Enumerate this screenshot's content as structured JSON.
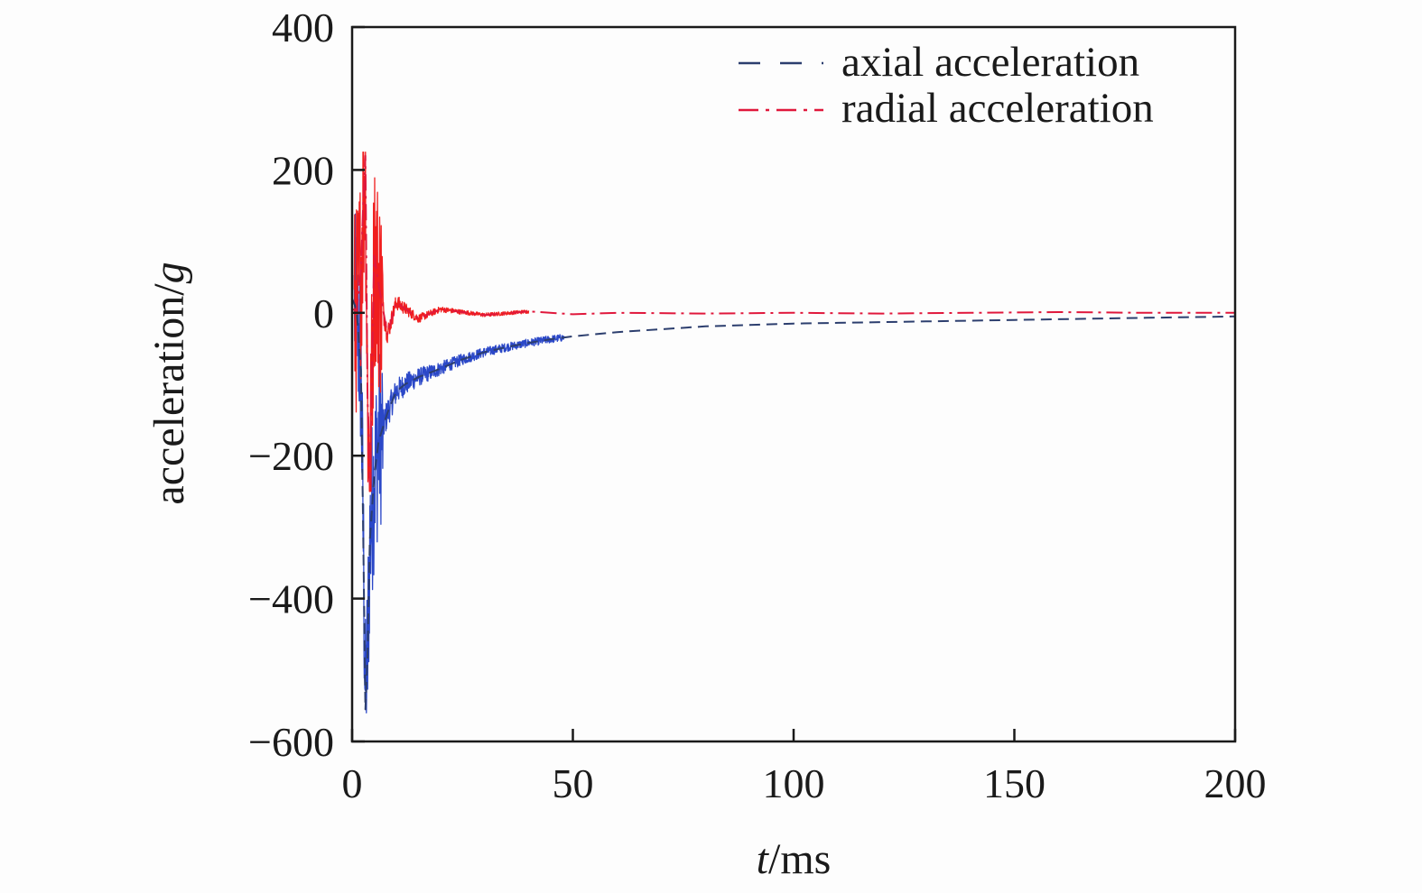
{
  "chart_data": {
    "type": "line",
    "title": "",
    "xlabel_var": "t",
    "xlabel_unit": "/ms",
    "ylabel_main": "acceleration/",
    "ylabel_var": "g",
    "xlim": [
      0,
      200
    ],
    "ylim": [
      -600,
      400
    ],
    "xticks": [
      0,
      50,
      100,
      150,
      200
    ],
    "xtick_labels": [
      "0",
      "50",
      "100",
      "150",
      "200"
    ],
    "yticks": [
      400,
      200,
      0,
      -200,
      -400,
      -600
    ],
    "ytick_labels": [
      "400",
      "200",
      "0",
      "−200",
      "−400",
      "−600"
    ],
    "grid": false,
    "legend_position": "top-right",
    "colors": {
      "axial_dash": "#2c3e6e",
      "axial_noise": "#2b48c8",
      "radial_line": "#e0183c",
      "radial_noise": "#f01e1e",
      "axis": "#1a1a1a"
    },
    "series": [
      {
        "name": "axial acceleration",
        "style": "dashed",
        "x": [
          0,
          1,
          2,
          2.5,
          3,
          3.5,
          4,
          5,
          6,
          8,
          10,
          12,
          15,
          20,
          25,
          30,
          35,
          40,
          45,
          50,
          60,
          70,
          80,
          90,
          100,
          110,
          120,
          130,
          140,
          150,
          160,
          170,
          180,
          190,
          200
        ],
        "y": [
          20,
          5,
          -80,
          -300,
          -555,
          -480,
          -320,
          -230,
          -180,
          -140,
          -110,
          -100,
          -90,
          -78,
          -65,
          -55,
          -48,
          -42,
          -37,
          -33,
          -27,
          -23,
          -19,
          -17,
          -15,
          -14,
          -13,
          -12,
          -11,
          -10,
          -9,
          -8,
          -7,
          -6,
          -5
        ]
      },
      {
        "name": "radial acceleration",
        "style": "dash-dot",
        "x": [
          0,
          1,
          2,
          2.5,
          3,
          3.5,
          4,
          5,
          6,
          8,
          10,
          15,
          20,
          30,
          40,
          50,
          60,
          80,
          100,
          120,
          140,
          160,
          180,
          200
        ],
        "y": [
          5,
          3,
          60,
          150,
          220,
          -120,
          -240,
          80,
          40,
          -30,
          15,
          -8,
          5,
          -3,
          2,
          -2,
          0,
          -1,
          0,
          -1,
          0,
          1,
          0,
          0
        ]
      }
    ]
  }
}
